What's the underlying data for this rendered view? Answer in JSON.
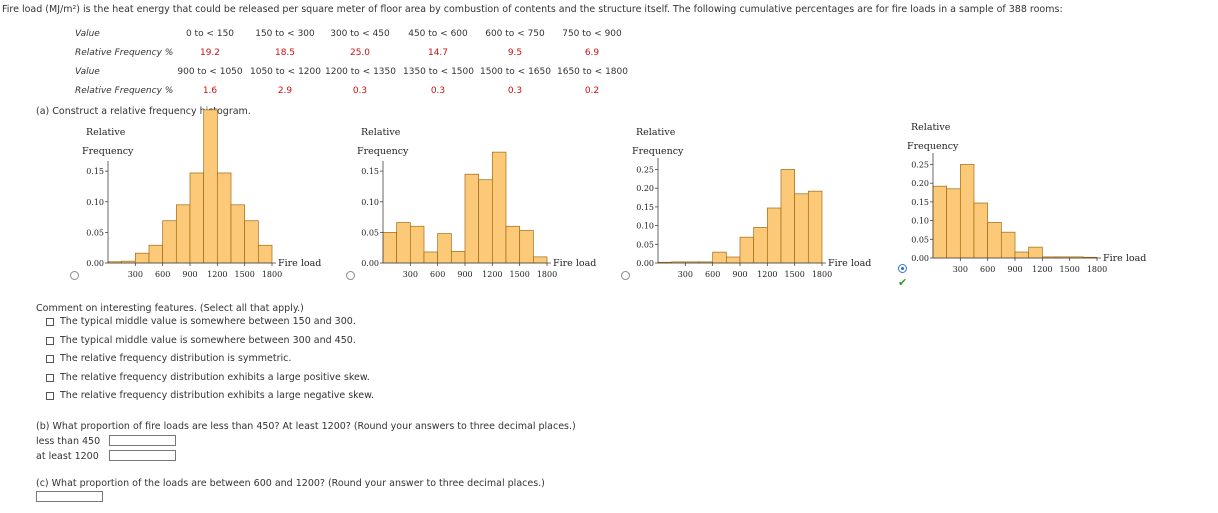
{
  "intro": "Fire load (MJ/m²) is the heat energy that could be released per square meter of floor area by combustion of contents and the structure itself. The following cumulative percentages are for fire loads in a sample of 388 rooms:",
  "table": {
    "value_label": "Value",
    "rf_label": "Relative Frequency %",
    "row1_values": [
      "0 to < 150",
      "150 to < 300",
      "300 to < 450",
      "450 to < 600",
      "600 to < 750",
      "750 to < 900"
    ],
    "row1_freqs": [
      "19.2",
      "18.5",
      "25.0",
      "14.7",
      "9.5",
      "6.9"
    ],
    "row2_values": [
      "900 to < 1050",
      "1050 to < 1200",
      "1200 to < 1350",
      "1350 to < 1500",
      "1500 to < 1650",
      "1650 to < 1800"
    ],
    "row2_freqs": [
      "1.6",
      "2.9",
      "0.3",
      "0.3",
      "0.3",
      "0.2"
    ]
  },
  "part_a": "(a) Construct a relative frequency histogram.",
  "chart_data": [
    {
      "type": "bar",
      "ylabel_line1": "Relative",
      "ylabel_line2": "Frequency",
      "xlabel": "Fire load",
      "yticks": [
        "0.00",
        "0.05",
        "0.10",
        "0.15"
      ],
      "ytick_values": [
        0,
        0.05,
        0.1,
        0.15
      ],
      "ylim": [
        0,
        0.16
      ],
      "xticks": [
        "300",
        "600",
        "900",
        "1200",
        "1500",
        "1800"
      ],
      "xtick_values": [
        300,
        600,
        900,
        1200,
        1500,
        1800
      ],
      "xlim": [
        0,
        1800
      ],
      "bin_width": 150,
      "values": [
        0.002,
        0.003,
        0.016,
        0.029,
        0.069,
        0.095,
        0.147,
        0.25,
        0.147,
        0.095,
        0.069,
        0.029
      ],
      "selected": false
    },
    {
      "type": "bar",
      "ylabel_line1": "Relative",
      "ylabel_line2": "Frequency",
      "xlabel": "Fire load",
      "yticks": [
        "0.00",
        "0.05",
        "0.10",
        "0.15"
      ],
      "ytick_values": [
        0,
        0.05,
        0.1,
        0.15
      ],
      "ylim": [
        0,
        0.16
      ],
      "xticks": [
        "300",
        "600",
        "900",
        "1200",
        "1500",
        "1800"
      ],
      "xtick_values": [
        300,
        600,
        900,
        1200,
        1500,
        1800
      ],
      "xlim": [
        0,
        1800
      ],
      "bin_width": 150,
      "values": [
        0.05,
        0.066,
        0.06,
        0.018,
        0.048,
        0.019,
        0.145,
        0.136,
        0.181,
        0.06,
        0.053,
        0.01
      ],
      "selected": false
    },
    {
      "type": "bar",
      "ylabel_line1": "Relative",
      "ylabel_line2": "Frequency",
      "xlabel": "Fire load",
      "yticks": [
        "0.00",
        "0.05",
        "0.10",
        "0.15",
        "0.20",
        "0.25"
      ],
      "ytick_values": [
        0,
        0.05,
        0.1,
        0.15,
        0.2,
        0.25
      ],
      "ylim": [
        0,
        0.27
      ],
      "xticks": [
        "300",
        "600",
        "900",
        "1200",
        "1500",
        "1800"
      ],
      "xtick_values": [
        300,
        600,
        900,
        1200,
        1500,
        1800
      ],
      "xlim": [
        0,
        1800
      ],
      "bin_width": 150,
      "values": [
        0.002,
        0.003,
        0.003,
        0.003,
        0.029,
        0.016,
        0.069,
        0.095,
        0.147,
        0.25,
        0.185,
        0.192
      ],
      "selected": false
    },
    {
      "type": "bar",
      "ylabel_line1": "Relative",
      "ylabel_line2": "Frequency",
      "xlabel": "Fire load",
      "yticks": [
        "0.00",
        "0.05",
        "0.10",
        "0.15",
        "0.20",
        "0.25"
      ],
      "ytick_values": [
        0,
        0.05,
        0.1,
        0.15,
        0.2,
        0.25
      ],
      "ylim": [
        0,
        0.27
      ],
      "xticks": [
        "300",
        "600",
        "900",
        "1200",
        "1500",
        "1800"
      ],
      "xtick_values": [
        300,
        600,
        900,
        1200,
        1500,
        1800
      ],
      "xlim": [
        0,
        1800
      ],
      "bin_width": 150,
      "values": [
        0.192,
        0.185,
        0.25,
        0.147,
        0.095,
        0.069,
        0.016,
        0.029,
        0.003,
        0.003,
        0.003,
        0.002
      ],
      "selected": true
    }
  ],
  "comment_prompt": "Comment on interesting features. (Select all that apply.)",
  "comment_options": [
    "The typical middle value is somewhere between 150 and 300.",
    "The typical middle value is somewhere between 300 and 450.",
    "The relative frequency distribution is symmetric.",
    "The relative frequency distribution exhibits a large positive skew.",
    "The relative frequency distribution exhibits a large negative skew."
  ],
  "part_b": "(b) What proportion of fire loads are less than 450? At least 1200? (Round your answers to three decimal places.)",
  "less_than_label": "less than 450",
  "at_least_label": "at least 1200",
  "part_c": "(c) What proportion of the loads are between 600 and 1200? (Round your answer to three decimal places.)",
  "colors": {
    "bar_fill": "#fcc978",
    "bar_stroke": "#a06a12",
    "value_red": "#cc1111"
  }
}
